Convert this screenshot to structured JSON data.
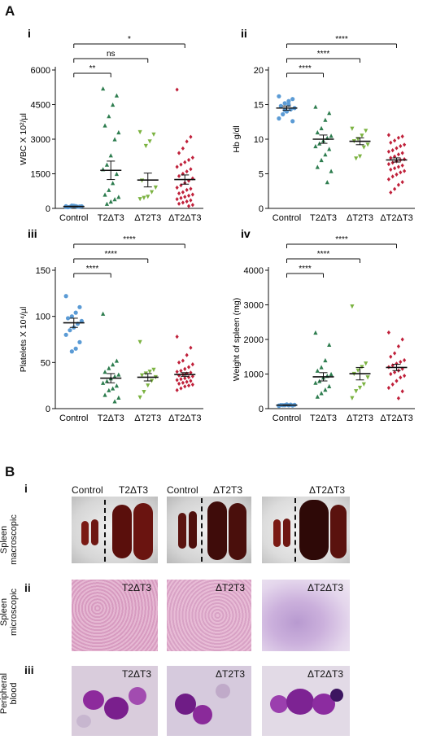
{
  "panel_a_label": "A",
  "panel_b_label": "B",
  "colors": {
    "Control": "#5b9bd5",
    "T2ΔT3": "#2e7d4f",
    "ΔT2T3": "#7cb342",
    "ΔT2ΔT3": "#c0203a"
  },
  "chart_data": [
    {
      "type": "scatter",
      "sublabel": "i",
      "ylabel": "WBC X 10²/µl",
      "ylim": [
        0,
        6000
      ],
      "yticks": [
        "0",
        "1500",
        "3000",
        "4500",
        "6000"
      ],
      "categories": [
        "Control",
        "T2ΔT3",
        "ΔT2T3",
        "ΔT2ΔT3"
      ],
      "markers": [
        "circle",
        "triangle",
        "triangle-down",
        "diamond"
      ],
      "means": [
        80,
        1650,
        1230,
        1250
      ],
      "sems": [
        15,
        400,
        300,
        200
      ],
      "series": [
        {
          "values": [
            60,
            80,
            100,
            120,
            50,
            90,
            70,
            110,
            65,
            95
          ]
        },
        {
          "values": [
            5200,
            4900,
            4500,
            4000,
            3600,
            3300,
            3000,
            2300,
            1900,
            1700,
            1500,
            1100,
            800,
            600,
            500,
            400,
            300,
            200
          ]
        },
        {
          "values": [
            3300,
            3200,
            2900,
            2700,
            1200,
            900,
            700,
            500,
            450,
            400
          ]
        },
        {
          "values": [
            5150,
            3100,
            2900,
            2600,
            2400,
            2200,
            2100,
            2000,
            1900,
            1800,
            1700,
            1600,
            1500,
            1400,
            1300,
            1200,
            1100,
            1000,
            900,
            850,
            800,
            700,
            650,
            600,
            550,
            500,
            450,
            400,
            350,
            300,
            250,
            200,
            150,
            100
          ]
        }
      ],
      "comparisons": [
        {
          "from": 0,
          "to": 1,
          "label": "**"
        },
        {
          "from": 0,
          "to": 2,
          "label": "ns"
        },
        {
          "from": 0,
          "to": 3,
          "label": "*"
        }
      ]
    },
    {
      "type": "scatter",
      "sublabel": "ii",
      "ylabel": "Hb g/dl",
      "ylim": [
        0,
        20
      ],
      "yticks": [
        "0",
        "5",
        "10",
        "15",
        "20"
      ],
      "categories": [
        "Control",
        "T2ΔT3",
        "ΔT2T3",
        "ΔT2ΔT3"
      ],
      "markers": [
        "circle",
        "triangle",
        "triangle-down",
        "diamond"
      ],
      "means": [
        14.5,
        10.0,
        9.7,
        7.0
      ],
      "sems": [
        0.3,
        0.6,
        0.5,
        0.3
      ],
      "series": [
        {
          "values": [
            16.2,
            15.8,
            15.5,
            15.2,
            14.8,
            14.5,
            14.3,
            14.0,
            13.6,
            13.0,
            12.6,
            15.0,
            14.2
          ]
        },
        {
          "values": [
            14.7,
            13.8,
            12.8,
            11.6,
            11.0,
            10.5,
            10.2,
            9.8,
            9.4,
            9.0,
            8.6,
            7.8,
            7.0,
            6.0,
            5.4,
            3.8
          ]
        },
        {
          "values": [
            11.5,
            11.2,
            10.5,
            10.0,
            9.7,
            9.2,
            8.8,
            7.5,
            7.2
          ]
        },
        {
          "values": [
            10.6,
            10.4,
            10.2,
            9.8,
            9.5,
            9.2,
            9.0,
            8.7,
            8.4,
            8.2,
            8.0,
            7.8,
            7.5,
            7.3,
            7.1,
            7.0,
            6.8,
            6.6,
            6.4,
            6.2,
            6.0,
            5.8,
            5.6,
            5.4,
            5.2,
            4.9,
            4.6,
            4.2,
            3.8,
            3.4,
            2.8,
            2.3
          ]
        }
      ],
      "comparisons": [
        {
          "from": 0,
          "to": 1,
          "label": "****"
        },
        {
          "from": 0,
          "to": 2,
          "label": "****"
        },
        {
          "from": 0,
          "to": 3,
          "label": "****"
        }
      ]
    },
    {
      "type": "scatter",
      "sublabel": "iii",
      "ylabel": "Platelets X 10⁴/µl",
      "ylim": [
        0,
        150
      ],
      "yticks": [
        "0",
        "50",
        "100",
        "150"
      ],
      "categories": [
        "Control",
        "T2ΔT3",
        "ΔT2T3",
        "ΔT2ΔT3"
      ],
      "markers": [
        "circle",
        "triangle",
        "triangle-down",
        "diamond"
      ],
      "means": [
        93,
        33,
        34,
        37
      ],
      "sems": [
        5,
        5,
        4,
        2
      ],
      "series": [
        {
          "values": [
            122,
            110,
            104,
            100,
            98,
            95,
            92,
            88,
            85,
            80,
            72,
            65,
            62
          ]
        },
        {
          "values": [
            103,
            52,
            48,
            44,
            40,
            37,
            35,
            33,
            30,
            28,
            25,
            22,
            20,
            15,
            12,
            8
          ]
        },
        {
          "values": [
            72,
            42,
            40,
            38,
            36,
            34,
            30,
            25,
            18,
            12
          ]
        },
        {
          "values": [
            78,
            66,
            58,
            52,
            50,
            48,
            45,
            43,
            41,
            40,
            39,
            38,
            37,
            36,
            35,
            34,
            33,
            32,
            31,
            30,
            29,
            28,
            27,
            26,
            25,
            24,
            22,
            20
          ]
        }
      ],
      "comparisons": [
        {
          "from": 0,
          "to": 1,
          "label": "****"
        },
        {
          "from": 0,
          "to": 2,
          "label": "****"
        },
        {
          "from": 0,
          "to": 3,
          "label": "****"
        }
      ]
    },
    {
      "type": "scatter",
      "sublabel": "iv",
      "ylabel": "Weight of spleen (mg)",
      "ylim": [
        0,
        4000
      ],
      "yticks": [
        "0",
        "1000",
        "2000",
        "3000",
        "4000"
      ],
      "categories": [
        "Control",
        "T2ΔT3",
        "ΔT2T3",
        "ΔT2ΔT3"
      ],
      "markers": [
        "circle",
        "triangle",
        "triangle-down",
        "diamond"
      ],
      "means": [
        100,
        920,
        1010,
        1190
      ],
      "sems": [
        10,
        120,
        180,
        90
      ],
      "series": [
        {
          "values": [
            80,
            90,
            95,
            100,
            105,
            110,
            115,
            120,
            100,
            90
          ]
        },
        {
          "values": [
            2200,
            1850,
            1400,
            1200,
            1100,
            1000,
            950,
            900,
            800,
            750,
            650,
            550,
            450,
            350
          ]
        },
        {
          "values": [
            2950,
            1300,
            1200,
            1100,
            1000,
            900,
            700,
            600,
            500,
            300
          ]
        },
        {
          "values": [
            2200,
            2000,
            1800,
            1600,
            1500,
            1400,
            1350,
            1300,
            1250,
            1200,
            1150,
            1100,
            1050,
            1000,
            950,
            900,
            800,
            700,
            600,
            500,
            300
          ]
        }
      ],
      "comparisons": [
        {
          "from": 0,
          "to": 1,
          "label": "****"
        },
        {
          "from": 0,
          "to": 2,
          "label": "****"
        },
        {
          "from": 0,
          "to": 3,
          "label": "****"
        }
      ]
    }
  ],
  "panel_b": {
    "sublabels": [
      "i",
      "ii",
      "iii"
    ],
    "row_labels": [
      "Spleen\nmacroscopic",
      "Spleen\nmicroscopic",
      "Peripheral\nblood"
    ],
    "macro": [
      {
        "left_label": "Control",
        "right_label": "T2ΔT3"
      },
      {
        "left_label": "Control",
        "right_label": "ΔT2T3"
      },
      {
        "left_label": "",
        "right_label": "ΔT2ΔT3"
      }
    ],
    "micro_labels": [
      "T2ΔT3",
      "ΔT2T3",
      "ΔT2ΔT3"
    ],
    "blood_labels": [
      "T2ΔT3",
      "ΔT2T3",
      "ΔT2ΔT3"
    ]
  }
}
